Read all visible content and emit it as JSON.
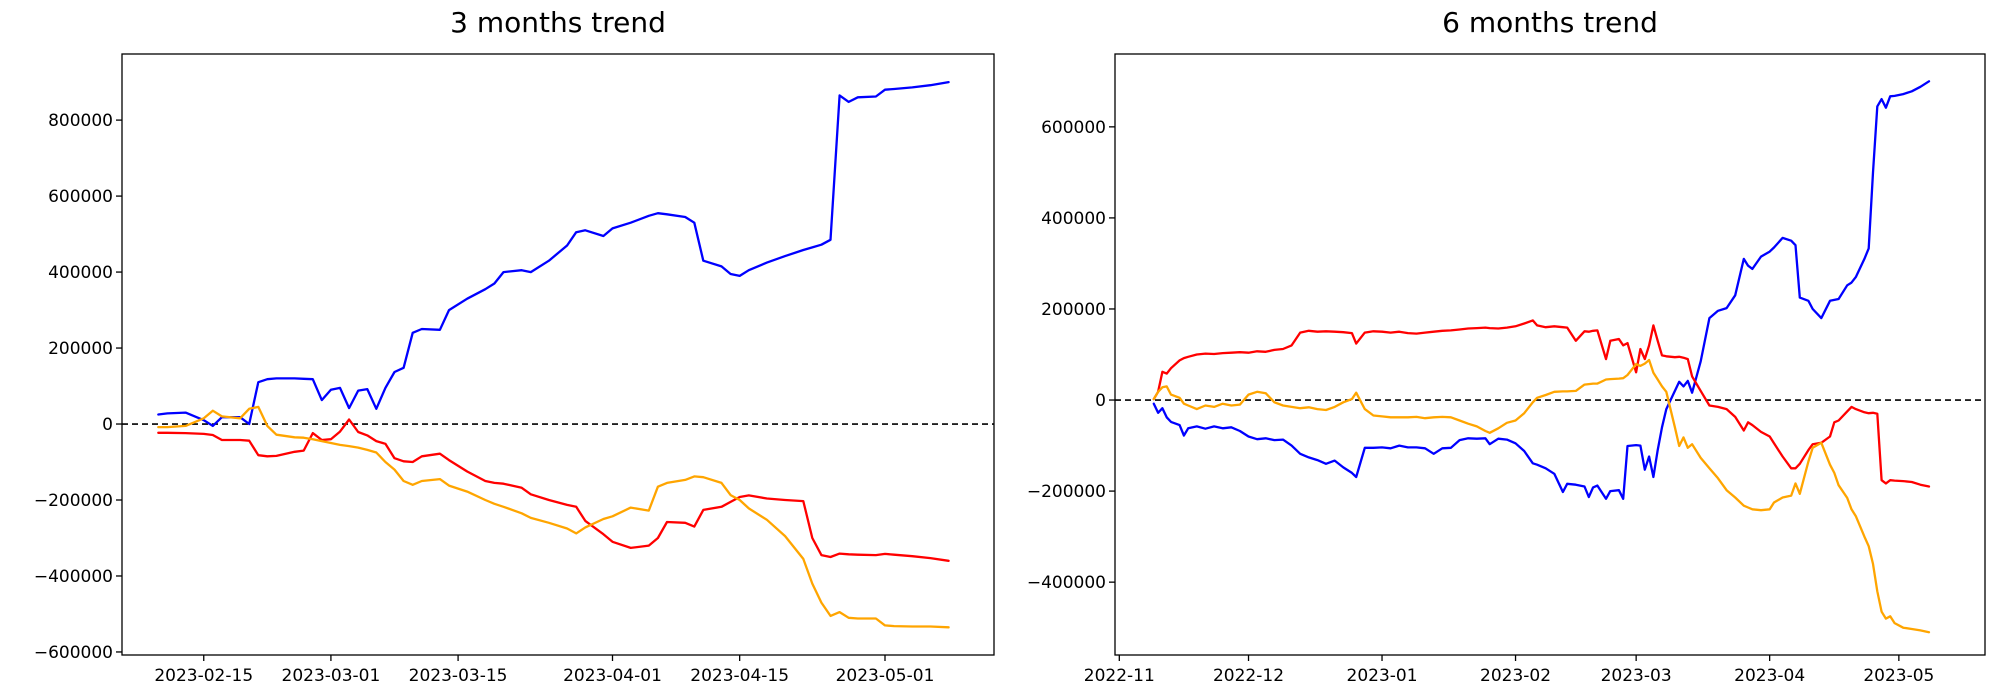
{
  "chart_data": [
    {
      "type": "line",
      "title": "3 months trend",
      "xlabel": "",
      "ylabel": "",
      "grid": false,
      "legend": null,
      "zero_line": {
        "style": "dashed",
        "color": "#000000"
      },
      "xlim": [
        "2023-02-06",
        "2023-05-13"
      ],
      "ylim": [
        -608000,
        974000
      ],
      "x_tick_dates": [
        "2023-02-15",
        "2023-03-01",
        "2023-03-15",
        "2023-04-01",
        "2023-04-15",
        "2023-05-01"
      ],
      "x_tick_labels": [
        "2023-02-15",
        "2023-03-01",
        "2023-03-15",
        "2023-04-01",
        "2023-04-15",
        "2023-05-01"
      ],
      "y_tick_values": [
        800000,
        600000,
        400000,
        200000,
        0,
        -200000,
        -400000,
        -600000
      ],
      "y_tick_labels": [
        "800000",
        "600000",
        "400000",
        "200000",
        "0",
        "−200000",
        "−400000",
        "−600000"
      ],
      "x": [
        "2023-02-10",
        "2023-02-11",
        "2023-02-13",
        "2023-02-15",
        "2023-02-16",
        "2023-02-17",
        "2023-02-19",
        "2023-02-20",
        "2023-02-21",
        "2023-02-22",
        "2023-02-23",
        "2023-02-25",
        "2023-02-26",
        "2023-02-27",
        "2023-02-28",
        "2023-03-01",
        "2023-03-02",
        "2023-03-03",
        "2023-03-04",
        "2023-03-05",
        "2023-03-06",
        "2023-03-07",
        "2023-03-08",
        "2023-03-09",
        "2023-03-10",
        "2023-03-11",
        "2023-03-13",
        "2023-03-14",
        "2023-03-16",
        "2023-03-18",
        "2023-03-19",
        "2023-03-20",
        "2023-03-22",
        "2023-03-23",
        "2023-03-25",
        "2023-03-27",
        "2023-03-28",
        "2023-03-29",
        "2023-03-31",
        "2023-04-01",
        "2023-04-03",
        "2023-04-05",
        "2023-04-06",
        "2023-04-07",
        "2023-04-09",
        "2023-04-10",
        "2023-04-11",
        "2023-04-13",
        "2023-04-14",
        "2023-04-15",
        "2023-04-16",
        "2023-04-18",
        "2023-04-20",
        "2023-04-22",
        "2023-04-23",
        "2023-04-24",
        "2023-04-25",
        "2023-04-26",
        "2023-04-27",
        "2023-04-28",
        "2023-04-30",
        "2023-05-01",
        "2023-05-02",
        "2023-05-04",
        "2023-05-06",
        "2023-05-08"
      ],
      "series": [
        {
          "name": "blue",
          "color": "#0000ff",
          "values": [
            25000,
            28000,
            30000,
            10000,
            -5000,
            18000,
            18000,
            0,
            110000,
            118000,
            120000,
            120000,
            119000,
            118000,
            63000,
            90000,
            95000,
            42000,
            88000,
            92000,
            40000,
            95000,
            137000,
            148000,
            240000,
            250000,
            248000,
            300000,
            330000,
            355000,
            370000,
            400000,
            405000,
            400000,
            430000,
            470000,
            505000,
            510000,
            495000,
            515000,
            530000,
            548000,
            555000,
            552000,
            545000,
            530000,
            430000,
            415000,
            395000,
            390000,
            405000,
            425000,
            442000,
            458000,
            465000,
            472000,
            485000,
            865000,
            848000,
            860000,
            862000,
            880000,
            882000,
            886000,
            892000,
            900000
          ]
        },
        {
          "name": "red",
          "color": "#ff0000",
          "values": [
            -23000,
            -23000,
            -24000,
            -26000,
            -29000,
            -42000,
            -42000,
            -44000,
            -82000,
            -85000,
            -84000,
            -73000,
            -70000,
            -24000,
            -42000,
            -40000,
            -20000,
            12000,
            -21000,
            -30000,
            -45000,
            -52000,
            -90000,
            -98000,
            -100000,
            -85000,
            -78000,
            -95000,
            -125000,
            -150000,
            -155000,
            -157000,
            -168000,
            -185000,
            -200000,
            -213000,
            -218000,
            -255000,
            -290000,
            -310000,
            -326000,
            -320000,
            -300000,
            -258000,
            -260000,
            -270000,
            -226000,
            -218000,
            -205000,
            -192000,
            -188000,
            -196000,
            -200000,
            -203000,
            -300000,
            -345000,
            -350000,
            -341000,
            -343000,
            -344000,
            -345000,
            -342000,
            -344000,
            -348000,
            -353000,
            -360000
          ]
        },
        {
          "name": "orange",
          "color": "#ffa500",
          "values": [
            -8000,
            -8000,
            -5000,
            15000,
            35000,
            20000,
            15000,
            40000,
            45000,
            -5000,
            -28000,
            -35000,
            -36000,
            -40000,
            -45000,
            -50000,
            -55000,
            -58000,
            -62000,
            -68000,
            -75000,
            -100000,
            -120000,
            -150000,
            -160000,
            -150000,
            -145000,
            -162000,
            -178000,
            -200000,
            -210000,
            -218000,
            -235000,
            -247000,
            -260000,
            -275000,
            -288000,
            -272000,
            -250000,
            -243000,
            -220000,
            -228000,
            -165000,
            -155000,
            -147000,
            -138000,
            -140000,
            -155000,
            -187000,
            -200000,
            -222000,
            -252000,
            -295000,
            -355000,
            -420000,
            -470000,
            -505000,
            -495000,
            -510000,
            -512000,
            -512000,
            -530000,
            -532000,
            -533000,
            -533000,
            -535000
          ]
        }
      ]
    },
    {
      "type": "line",
      "title": "6 months trend",
      "xlabel": "",
      "ylabel": "",
      "grid": false,
      "legend": null,
      "zero_line": {
        "style": "dashed",
        "color": "#000000"
      },
      "xlim": [
        "2022-10-31",
        "2023-05-21"
      ],
      "ylim": [
        -560000,
        760000
      ],
      "x_tick_dates": [
        "2022-11-01",
        "2022-12-01",
        "2023-01-01",
        "2023-02-01",
        "2023-03-01",
        "2023-04-01",
        "2023-05-01"
      ],
      "x_tick_labels": [
        "2022-11",
        "2022-12",
        "2023-01",
        "2023-02",
        "2023-03",
        "2023-04",
        "2023-05"
      ],
      "y_tick_values": [
        600000,
        400000,
        200000,
        0,
        -200000,
        -400000
      ],
      "y_tick_labels": [
        "600000",
        "400000",
        "200000",
        "0",
        "−200000",
        "−400000"
      ],
      "x": [
        "2022-11-09",
        "2022-11-10",
        "2022-11-11",
        "2022-11-12",
        "2022-11-13",
        "2022-11-15",
        "2022-11-16",
        "2022-11-17",
        "2022-11-19",
        "2022-11-21",
        "2022-11-23",
        "2022-11-25",
        "2022-11-27",
        "2022-11-29",
        "2022-12-01",
        "2022-12-03",
        "2022-12-05",
        "2022-12-07",
        "2022-12-09",
        "2022-12-11",
        "2022-12-13",
        "2022-12-15",
        "2022-12-17",
        "2022-12-19",
        "2022-12-21",
        "2022-12-23",
        "2022-12-25",
        "2022-12-26",
        "2022-12-28",
        "2022-12-30",
        "2023-01-01",
        "2023-01-03",
        "2023-01-05",
        "2023-01-07",
        "2023-01-09",
        "2023-01-11",
        "2023-01-13",
        "2023-01-15",
        "2023-01-17",
        "2023-01-19",
        "2023-01-21",
        "2023-01-23",
        "2023-01-25",
        "2023-01-26",
        "2023-01-28",
        "2023-01-30",
        "2023-02-01",
        "2023-02-03",
        "2023-02-05",
        "2023-02-06",
        "2023-02-08",
        "2023-02-10",
        "2023-02-12",
        "2023-02-13",
        "2023-02-15",
        "2023-02-17",
        "2023-02-18",
        "2023-02-19",
        "2023-02-20",
        "2023-02-22",
        "2023-02-23",
        "2023-02-25",
        "2023-02-26",
        "2023-02-27",
        "2023-03-01",
        "2023-03-02",
        "2023-03-03",
        "2023-03-04",
        "2023-03-05",
        "2023-03-06",
        "2023-03-07",
        "2023-03-08",
        "2023-03-10",
        "2023-03-11",
        "2023-03-12",
        "2023-03-13",
        "2023-03-14",
        "2023-03-16",
        "2023-03-18",
        "2023-03-20",
        "2023-03-22",
        "2023-03-24",
        "2023-03-26",
        "2023-03-27",
        "2023-03-28",
        "2023-03-30",
        "2023-04-01",
        "2023-04-02",
        "2023-04-04",
        "2023-04-06",
        "2023-04-07",
        "2023-04-08",
        "2023-04-10",
        "2023-04-11",
        "2023-04-13",
        "2023-04-15",
        "2023-04-16",
        "2023-04-17",
        "2023-04-19",
        "2023-04-20",
        "2023-04-21",
        "2023-04-23",
        "2023-04-24",
        "2023-04-25",
        "2023-04-26",
        "2023-04-27",
        "2023-04-28",
        "2023-04-29",
        "2023-04-30",
        "2023-05-02",
        "2023-05-04",
        "2023-05-06",
        "2023-05-08"
      ],
      "series": [
        {
          "name": "blue",
          "color": "#0000ff",
          "values": [
            -8000,
            -28000,
            -18000,
            -38000,
            -48000,
            -55000,
            -78000,
            -62000,
            -58000,
            -63000,
            -58000,
            -62000,
            -60000,
            -68000,
            -80000,
            -86000,
            -84000,
            -88000,
            -87000,
            -100000,
            -118000,
            -126000,
            -132000,
            -140000,
            -133000,
            -148000,
            -160000,
            -169000,
            -105000,
            -105000,
            -104000,
            -106000,
            -100000,
            -104000,
            -104000,
            -106000,
            -118000,
            -106000,
            -105000,
            -88000,
            -84000,
            -85000,
            -84000,
            -97000,
            -85000,
            -87000,
            -95000,
            -112000,
            -139000,
            -142000,
            -150000,
            -162000,
            -202000,
            -184000,
            -186000,
            -190000,
            -213000,
            -192000,
            -188000,
            -217000,
            -200000,
            -198000,
            -217000,
            -101000,
            -99000,
            -100000,
            -153000,
            -124000,
            -169000,
            -110000,
            -60000,
            -20000,
            20000,
            40000,
            30000,
            42000,
            16000,
            85000,
            180000,
            196000,
            202000,
            230000,
            310000,
            295000,
            288000,
            315000,
            326000,
            335000,
            356000,
            350000,
            340000,
            225000,
            218000,
            200000,
            180000,
            218000,
            220000,
            222000,
            252000,
            258000,
            270000,
            310000,
            333000,
            500000,
            645000,
            661000,
            642000,
            667000,
            668000,
            672000,
            678000,
            688000,
            700000
          ]
        },
        {
          "name": "red",
          "color": "#ff0000",
          "values": [
            2000,
            18000,
            62000,
            58000,
            70000,
            87000,
            92000,
            95000,
            100000,
            102000,
            101000,
            103000,
            104000,
            105000,
            104000,
            107000,
            106000,
            110000,
            112000,
            120000,
            148000,
            152000,
            150000,
            151000,
            150000,
            149000,
            147000,
            124000,
            148000,
            151000,
            150000,
            148000,
            150000,
            147000,
            146000,
            148000,
            150000,
            152000,
            153000,
            155000,
            157000,
            158000,
            159000,
            158000,
            157000,
            159000,
            162000,
            168000,
            175000,
            164000,
            160000,
            162000,
            160000,
            159000,
            130000,
            151000,
            150000,
            152000,
            153000,
            90000,
            130000,
            134000,
            120000,
            125000,
            61000,
            112000,
            90000,
            120000,
            164000,
            130000,
            98000,
            96000,
            94000,
            95000,
            93000,
            90000,
            52000,
            20000,
            -12000,
            -15000,
            -20000,
            -37000,
            -67000,
            -49000,
            -55000,
            -70000,
            -80000,
            -95000,
            -124000,
            -150000,
            -150000,
            -140000,
            -110000,
            -97000,
            -94000,
            -80000,
            -49000,
            -45000,
            -25000,
            -15000,
            -20000,
            -27000,
            -29000,
            -28000,
            -30000,
            -176000,
            -183000,
            -176000,
            -177000,
            -178000,
            -180000,
            -186000,
            -190000
          ]
        },
        {
          "name": "orange",
          "color": "#ffa500",
          "values": [
            2000,
            18000,
            28000,
            30000,
            12000,
            5000,
            -8000,
            -12000,
            -20000,
            -12000,
            -15000,
            -8000,
            -12000,
            -10000,
            12000,
            18000,
            15000,
            -5000,
            -12000,
            -15000,
            -18000,
            -16000,
            -20000,
            -22000,
            -15000,
            -5000,
            2000,
            16000,
            -20000,
            -34000,
            -36000,
            -38000,
            -38000,
            -38000,
            -37000,
            -40000,
            -38000,
            -37000,
            -38000,
            -45000,
            -52000,
            -58000,
            -68000,
            -72000,
            -62000,
            -50000,
            -45000,
            -29000,
            -5000,
            5000,
            11000,
            18000,
            19000,
            19000,
            20000,
            34000,
            35000,
            36000,
            36000,
            45000,
            46000,
            47000,
            48000,
            55000,
            79000,
            75000,
            80000,
            88000,
            60000,
            45000,
            30000,
            18000,
            -60000,
            -101000,
            -82000,
            -105000,
            -97000,
            -127000,
            -150000,
            -172000,
            -198000,
            -214000,
            -232000,
            -236000,
            -240000,
            -242000,
            -240000,
            -225000,
            -214000,
            -210000,
            -183000,
            -206000,
            -135000,
            -105000,
            -94000,
            -142000,
            -160000,
            -187000,
            -215000,
            -240000,
            -255000,
            -300000,
            -321000,
            -360000,
            -420000,
            -465000,
            -480000,
            -475000,
            -490000,
            -500000,
            -503000,
            -506000,
            -510000
          ]
        }
      ]
    }
  ]
}
